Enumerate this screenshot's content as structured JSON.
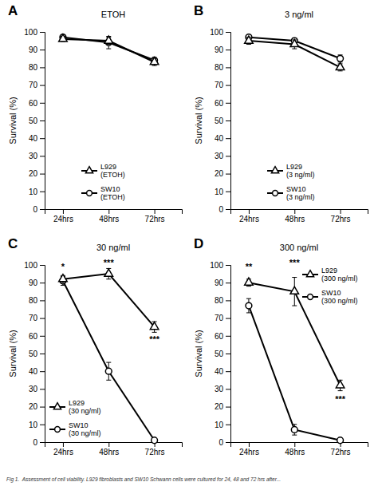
{
  "caption": "Fig 1.  Assessment of cell viability. L929 fibroblasts and SW10 Schwann cells were cultured for 24, 48 and 72 hrs after...",
  "chart_data": [
    {
      "type": "line",
      "label": "A",
      "title": "ETOH",
      "ylabel": "Survival (%)",
      "x": [
        1,
        2,
        3
      ],
      "xlim": [
        0.6,
        3.6
      ],
      "xticks": [
        {
          "value": 1,
          "label": "24hrs"
        },
        {
          "value": 2,
          "label": "48hrs"
        },
        {
          "value": 3,
          "label": "72hrs"
        }
      ],
      "ylim": [
        0,
        100
      ],
      "yticks": [
        0,
        10,
        20,
        30,
        40,
        50,
        60,
        70,
        80,
        90,
        100
      ],
      "grid": false,
      "legend": "lower center",
      "series": [
        {
          "name": "L929\n(ETOH)",
          "color": "#000000",
          "marker": "triangle",
          "line_style": "solid",
          "values": [
            96,
            95,
            83
          ],
          "errors": [
            1.5,
            2.0,
            2.0
          ]
        },
        {
          "name": "SW10\n(ETOH)",
          "color": "#000000",
          "marker": "circle",
          "line_style": "solid",
          "values": [
            97,
            94,
            84
          ],
          "errors": [
            1.0,
            3.5,
            1.5
          ]
        }
      ]
    },
    {
      "type": "line",
      "label": "B",
      "title": "3 ng/ml",
      "ylabel": "Survival (%)",
      "x": [
        1,
        2,
        3
      ],
      "xlim": [
        0.6,
        3.6
      ],
      "xticks": [
        {
          "value": 1,
          "label": "24hrs"
        },
        {
          "value": 2,
          "label": "48hrs"
        },
        {
          "value": 3,
          "label": "72hrs"
        }
      ],
      "ylim": [
        0,
        100
      ],
      "yticks": [
        0,
        10,
        20,
        30,
        40,
        50,
        60,
        70,
        80,
        90,
        100
      ],
      "grid": false,
      "legend": "lower center",
      "series": [
        {
          "name": "L929\n(3 ng/ml)",
          "color": "#000000",
          "marker": "triangle",
          "line_style": "solid",
          "values": [
            95,
            93,
            80
          ],
          "errors": [
            2.0,
            2.5,
            2.0
          ]
        },
        {
          "name": "SW10\n(3 ng/ml)",
          "color": "#000000",
          "marker": "circle",
          "line_style": "solid",
          "values": [
            97,
            95,
            85
          ],
          "errors": [
            1.0,
            1.5,
            2.0
          ]
        }
      ]
    },
    {
      "type": "line",
      "label": "C",
      "title": "30 ng/ml",
      "ylabel": "Survival (%)",
      "x": [
        1,
        2,
        3
      ],
      "xlim": [
        0.6,
        3.6
      ],
      "xticks": [
        {
          "value": 1,
          "label": "24hrs"
        },
        {
          "value": 2,
          "label": "48hrs"
        },
        {
          "value": 3,
          "label": "72hrs"
        }
      ],
      "ylim": [
        0,
        100
      ],
      "yticks": [
        0,
        10,
        20,
        30,
        40,
        50,
        60,
        70,
        80,
        90,
        100
      ],
      "grid": false,
      "legend": "lower left",
      "series": [
        {
          "name": "L929\n(30 ng/ml)",
          "color": "#000000",
          "marker": "triangle",
          "line_style": "solid",
          "values": [
            92,
            95,
            65
          ],
          "errors": [
            2.0,
            3.0,
            3.0
          ]
        },
        {
          "name": "SW10\n(30 ng/ml)",
          "color": "#000000",
          "marker": "circle",
          "line_style": "solid",
          "values": [
            91,
            40,
            1
          ],
          "errors": [
            2.5,
            5.0,
            1.0
          ]
        }
      ],
      "annotations": [
        {
          "text": "*",
          "x": 1,
          "y": 97
        },
        {
          "text": "***",
          "x": 2,
          "y": 99
        },
        {
          "text": "***",
          "x": 3,
          "y": 56
        }
      ]
    },
    {
      "type": "line",
      "label": "D",
      "title": "300 ng/ml",
      "ylabel": "Survival (%)",
      "x": [
        1,
        2,
        3
      ],
      "xlim": [
        0.6,
        3.6
      ],
      "xticks": [
        {
          "value": 1,
          "label": "24hrs"
        },
        {
          "value": 2,
          "label": "48hrs"
        },
        {
          "value": 3,
          "label": "72hrs"
        }
      ],
      "ylim": [
        0,
        100
      ],
      "yticks": [
        0,
        10,
        20,
        30,
        40,
        50,
        60,
        70,
        80,
        90,
        100
      ],
      "grid": false,
      "legend": "upper right",
      "series": [
        {
          "name": "L929\n(300 ng/ml)",
          "color": "#000000",
          "marker": "triangle",
          "line_style": "solid",
          "values": [
            90,
            85,
            32
          ],
          "errors": [
            2.0,
            8.0,
            3.0
          ]
        },
        {
          "name": "SW10\n(300 ng/ml)",
          "color": "#000000",
          "marker": "circle",
          "line_style": "solid",
          "values": [
            77,
            7,
            1
          ],
          "errors": [
            4.0,
            3.0,
            0.5
          ]
        }
      ],
      "annotations": [
        {
          "text": "**",
          "x": 1,
          "y": 97
        },
        {
          "text": "***",
          "x": 2,
          "y": 99
        },
        {
          "text": "***",
          "x": 3,
          "y": 22
        }
      ]
    }
  ]
}
